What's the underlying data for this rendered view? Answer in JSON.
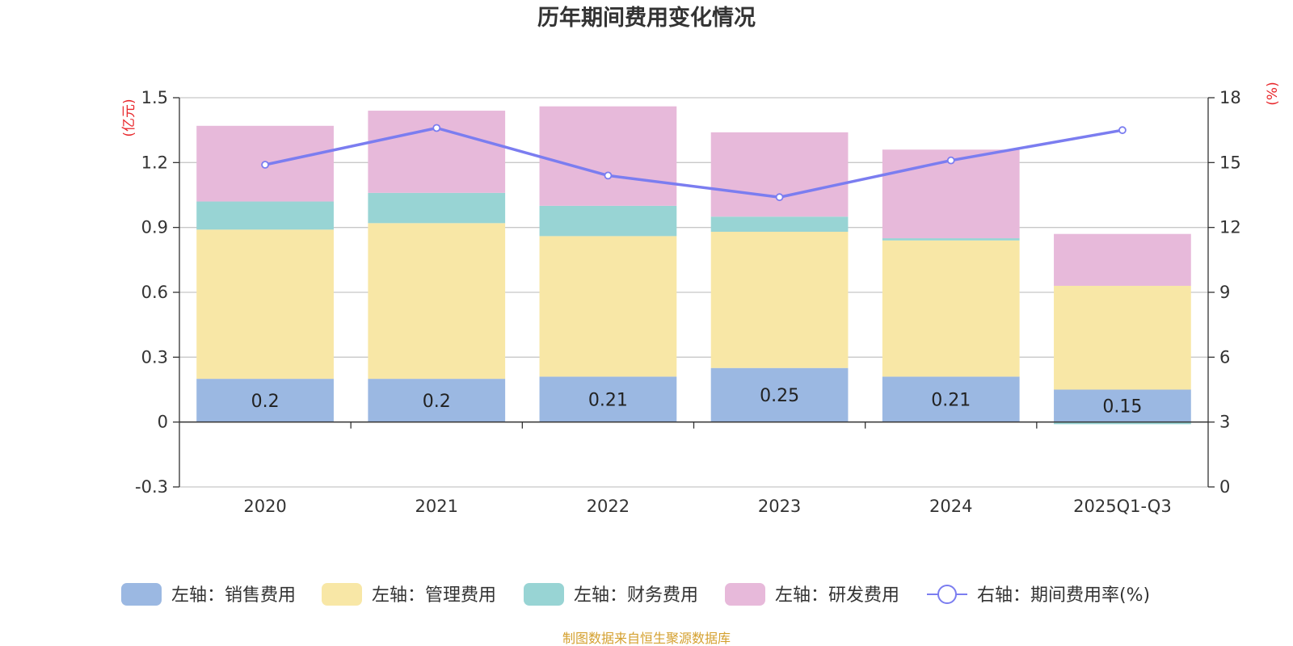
{
  "chart_data": {
    "type": "bar",
    "stacked": true,
    "title": "历年期间费用变化情况",
    "categories": [
      "2020",
      "2021",
      "2022",
      "2023",
      "2024",
      "2025Q1-Q3"
    ],
    "left_axis": {
      "unit": "(亿元)",
      "range": [
        -0.3,
        1.5
      ],
      "ticks": [
        "-0.3",
        "0",
        "0.3",
        "0.6",
        "0.9",
        "1.2",
        "1.5"
      ]
    },
    "right_axis": {
      "unit": "(%)",
      "range": [
        0,
        18
      ],
      "ticks": [
        "0",
        "3",
        "6",
        "9",
        "12",
        "15",
        "18"
      ]
    },
    "series": [
      {
        "name": "左轴：销售费用",
        "axis": "left",
        "type": "bar",
        "color": "#9bb8e2",
        "values": [
          0.2,
          0.2,
          0.21,
          0.25,
          0.21,
          0.15
        ],
        "labels": [
          "0.2",
          "0.2",
          "0.21",
          "0.25",
          "0.21",
          "0.15"
        ]
      },
      {
        "name": "左轴：管理费用",
        "axis": "left",
        "type": "bar",
        "color": "#f8e7a6",
        "values": [
          0.69,
          0.72,
          0.65,
          0.63,
          0.63,
          0.48
        ]
      },
      {
        "name": "左轴：财务费用",
        "axis": "left",
        "type": "bar",
        "color": "#98d4d4",
        "values": [
          0.13,
          0.14,
          0.14,
          0.07,
          0.01,
          -0.01
        ]
      },
      {
        "name": "左轴：研发费用",
        "axis": "left",
        "type": "bar",
        "color": "#e7b9da",
        "values": [
          0.35,
          0.38,
          0.46,
          0.39,
          0.41,
          0.24
        ]
      },
      {
        "name": "右轴：期间费用率(%)",
        "axis": "right",
        "type": "line",
        "color": "#7b7df0",
        "values": [
          14.9,
          16.6,
          14.4,
          13.4,
          15.1,
          16.5
        ]
      }
    ],
    "grid": true,
    "legend_position": "bottom"
  },
  "source_note": "制图数据来自恒生聚源数据库"
}
